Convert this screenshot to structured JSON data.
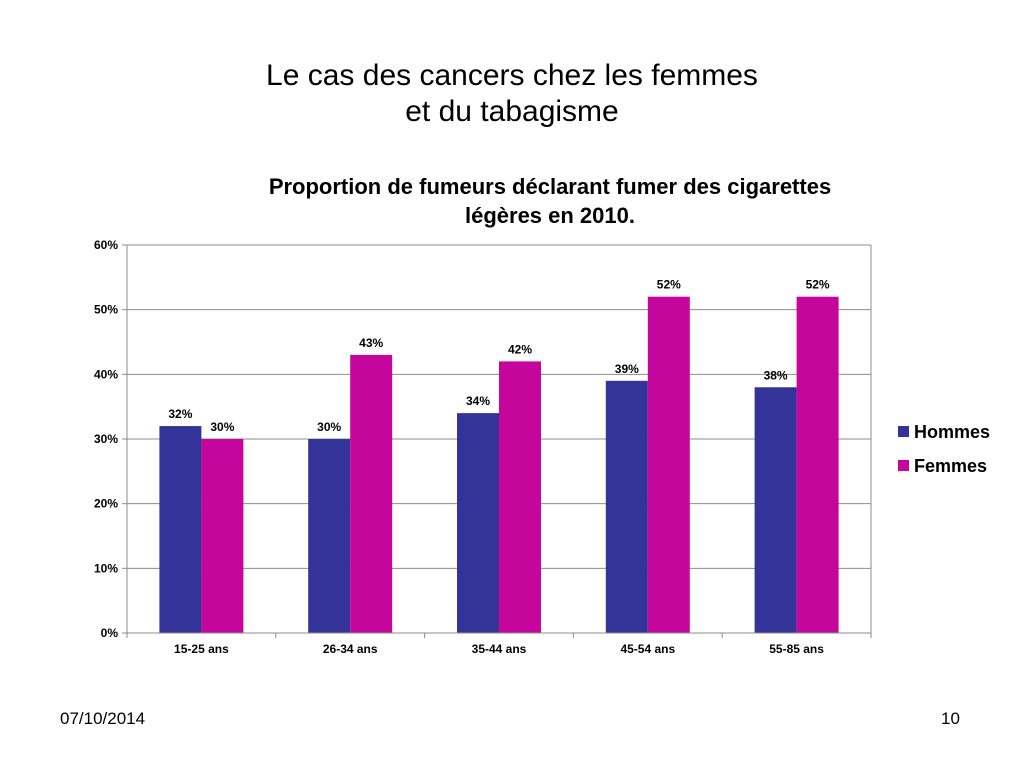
{
  "slide": {
    "title_line1": "Le cas des cancers chez les femmes",
    "title_line2": "et du tabagisme",
    "date": "07/10/2014",
    "page_number": "10"
  },
  "chart_data": {
    "type": "bar",
    "title_line1": "Proportion de fumeurs déclarant fumer des cigarettes",
    "title_line2": "légères en 2010.",
    "categories": [
      "15-25 ans",
      "26-34 ans",
      "35-44 ans",
      "45-54 ans",
      "55-85 ans"
    ],
    "series": [
      {
        "name": "Hommes",
        "color": "#333399",
        "values": [
          32,
          30,
          34,
          39,
          38
        ]
      },
      {
        "name": "Femmes",
        "color": "#c4069c",
        "values": [
          30,
          43,
          42,
          52,
          52
        ]
      }
    ],
    "ylim": [
      0,
      60
    ],
    "yticks": [
      0,
      10,
      20,
      30,
      40,
      50,
      60
    ],
    "ytick_suffix": "%",
    "xlabel": "",
    "ylabel": "",
    "grid": true,
    "legend_position": "right"
  }
}
